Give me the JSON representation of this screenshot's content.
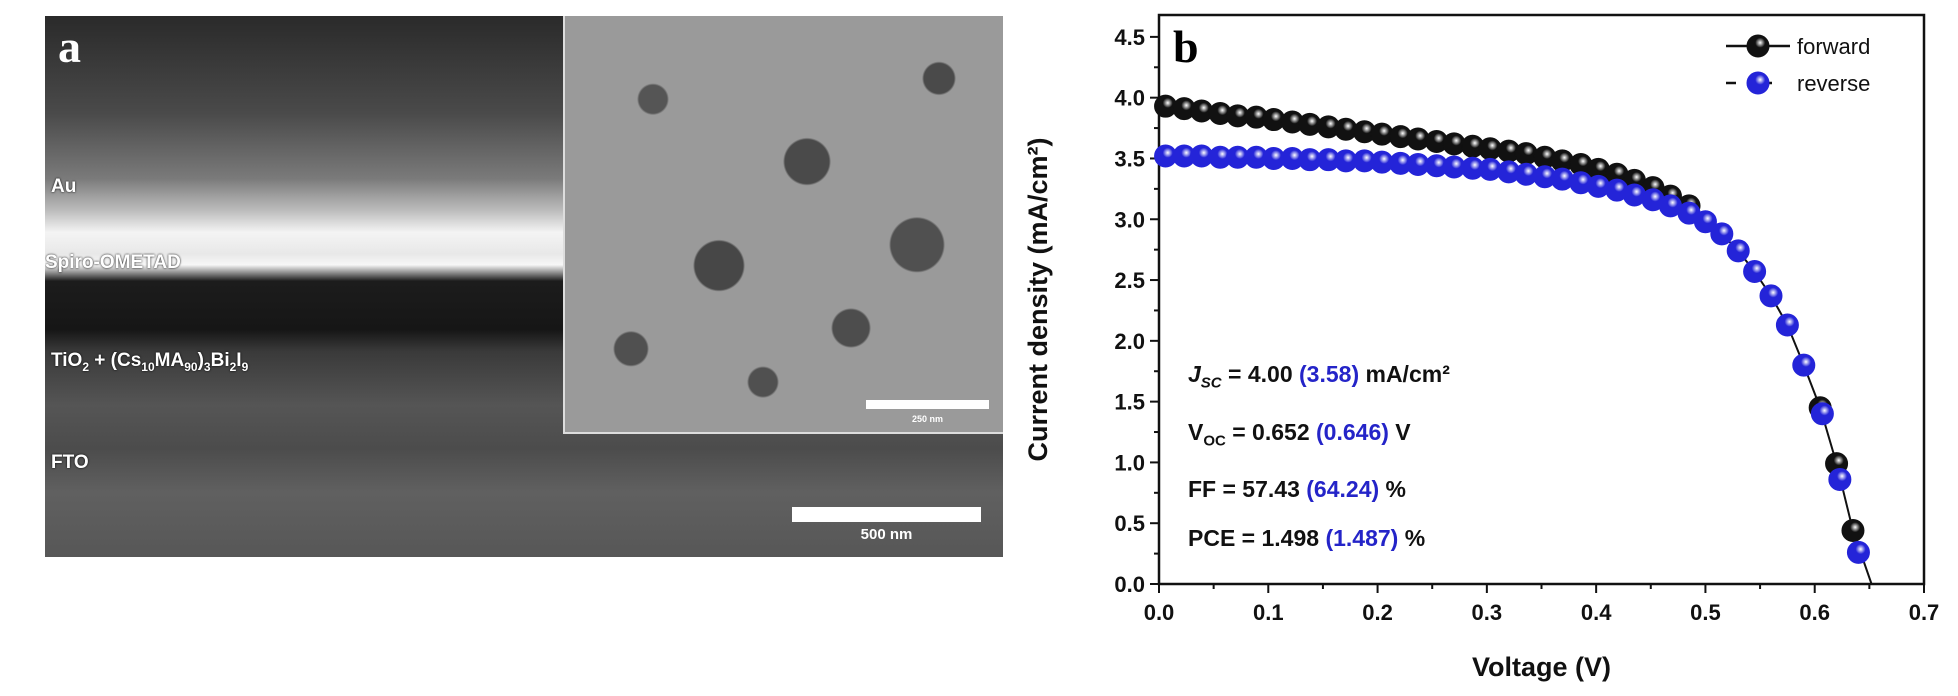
{
  "panel_a": {
    "letter": "a",
    "layers": {
      "au": "Au",
      "spiro": "Spiro-OMETAD",
      "tio2_prefix": "TiO",
      "tio2_sub": "2",
      "mix_open": " + (Cs",
      "cs_sub": "10",
      "ma": "MA",
      "ma_sub": "90",
      "close": ")",
      "close_sub": "3",
      "bi": "Bi",
      "bi_sub": "2",
      "i": "I",
      "i_sub": "9",
      "fto": "FTO"
    },
    "scale_main": "500 nm",
    "scale_inset": "250 nm"
  },
  "panel_b": {
    "letter": "b",
    "stats": {
      "jsc_label": "J",
      "jsc_sub": "SC",
      "jsc_fwd": " = 4.00 ",
      "jsc_rev": "(3.58)",
      "jsc_unit": " mA/cm²",
      "voc_label": "V",
      "voc_sub": "OC",
      "voc_fwd": " = 0.652 ",
      "voc_rev": "(0.646)",
      "voc_unit": " V",
      "ff_fwd": "FF = 57.43 ",
      "ff_rev": "(64.24)",
      "ff_unit": " %",
      "pce_fwd": "PCE = 1.498 ",
      "pce_rev": "(1.487)",
      "pce_unit": " %"
    }
  },
  "chart_data": {
    "type": "scatter",
    "title": "",
    "xlabel": "Voltage (V)",
    "ylabel": "Current density (mA/cm²)",
    "xlim": [
      0,
      0.7
    ],
    "ylim": [
      0,
      4.68
    ],
    "xticks": [
      "0.0",
      "0.1",
      "0.2",
      "0.3",
      "0.4",
      "0.5",
      "0.6",
      "0.7"
    ],
    "yticks": [
      "0.0",
      "0.5",
      "1.0",
      "1.5",
      "2.0",
      "2.5",
      "3.0",
      "3.5",
      "4.0",
      "4.5"
    ],
    "legend_position": "top-right",
    "colors": {
      "forward": "#111111",
      "reverse": "#2424d8"
    },
    "series": [
      {
        "name": "forward",
        "x": [
          0.006,
          0.023,
          0.039,
          0.056,
          0.072,
          0.089,
          0.105,
          0.122,
          0.138,
          0.155,
          0.171,
          0.188,
          0.204,
          0.221,
          0.237,
          0.254,
          0.27,
          0.287,
          0.303,
          0.32,
          0.336,
          0.353,
          0.369,
          0.386,
          0.402,
          0.419,
          0.435,
          0.452,
          0.468,
          0.485,
          0.605,
          0.62,
          0.635
        ],
        "y": [
          3.93,
          3.91,
          3.89,
          3.87,
          3.85,
          3.84,
          3.82,
          3.8,
          3.78,
          3.76,
          3.74,
          3.72,
          3.7,
          3.68,
          3.66,
          3.64,
          3.62,
          3.6,
          3.58,
          3.56,
          3.54,
          3.51,
          3.48,
          3.45,
          3.41,
          3.37,
          3.32,
          3.26,
          3.19,
          3.11,
          1.45,
          0.99,
          0.44
        ]
      },
      {
        "name": "reverse",
        "x": [
          0.006,
          0.023,
          0.039,
          0.056,
          0.072,
          0.089,
          0.105,
          0.122,
          0.138,
          0.155,
          0.171,
          0.188,
          0.204,
          0.221,
          0.237,
          0.254,
          0.27,
          0.287,
          0.303,
          0.32,
          0.336,
          0.353,
          0.369,
          0.386,
          0.402,
          0.419,
          0.435,
          0.452,
          0.468,
          0.485,
          0.5,
          0.515,
          0.53,
          0.545,
          0.56,
          0.575,
          0.59,
          0.607,
          0.623,
          0.64
        ],
        "y": [
          3.52,
          3.52,
          3.52,
          3.51,
          3.51,
          3.51,
          3.5,
          3.5,
          3.49,
          3.49,
          3.48,
          3.48,
          3.47,
          3.46,
          3.45,
          3.44,
          3.43,
          3.42,
          3.41,
          3.39,
          3.37,
          3.35,
          3.33,
          3.3,
          3.27,
          3.24,
          3.2,
          3.16,
          3.11,
          3.05,
          2.98,
          2.88,
          2.74,
          2.57,
          2.37,
          2.13,
          1.8,
          1.4,
          0.86,
          0.26
        ]
      }
    ]
  }
}
